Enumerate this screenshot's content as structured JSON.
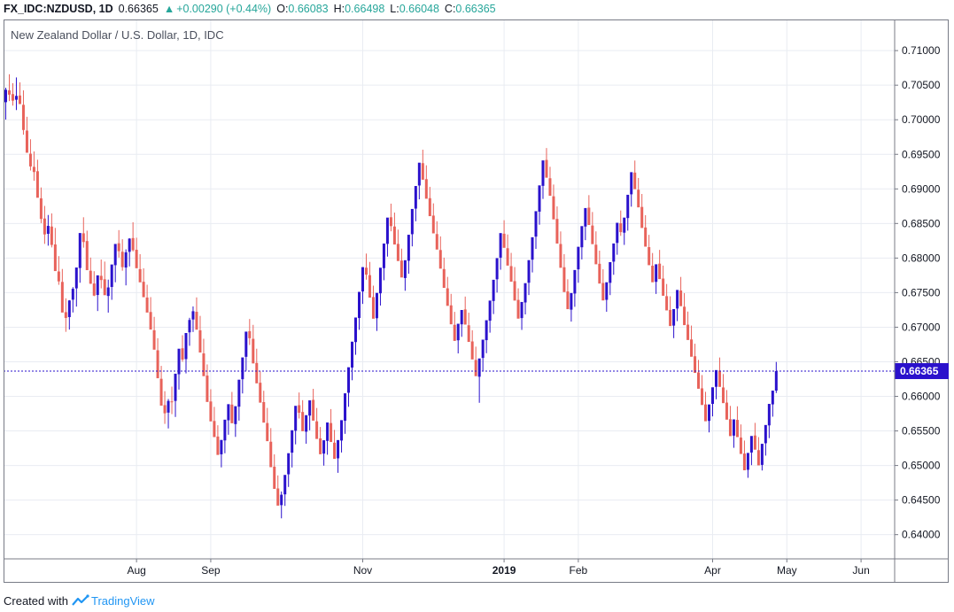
{
  "header": {
    "symbol": "FX_IDC:NZDUSD, 1D",
    "last": "0.66365",
    "change": "+0.00290 (+0.44%)",
    "open_label": "O:",
    "open": "0.66083",
    "high_label": "H:",
    "high": "0.66498",
    "low_label": "L:",
    "low": "0.66048",
    "close_label": "C:",
    "close": "0.66365"
  },
  "footer": {
    "created_with": "Created with",
    "brand": "TradingView",
    "logo_icon": "tradingview-logo-icon"
  },
  "colors": {
    "up": "#2a11cc",
    "down": "#e8625a",
    "last_price_line": "#2a11cc",
    "grid": "#e9ecf2",
    "axis_text": "#131722"
  },
  "chart_data": {
    "type": "candlestick",
    "title": "New Zealand Dollar / U.S. Dollar, 1D, IDC",
    "ylim": [
      0.6365,
      0.7145
    ],
    "y_ticks": [
      "0.64000",
      "0.64500",
      "0.65000",
      "0.65500",
      "0.66000",
      "0.66500",
      "0.67000",
      "0.67500",
      "0.68000",
      "0.68500",
      "0.69000",
      "0.69500",
      "0.70000",
      "0.70500",
      "0.71000"
    ],
    "x_ticks": [
      {
        "label": "Aug",
        "index": 37
      },
      {
        "label": "Sep",
        "index": 58
      },
      {
        "label": "Nov",
        "index": 101
      },
      {
        "label": "2019",
        "index": 141
      },
      {
        "label": "Feb",
        "index": 162
      },
      {
        "label": "Apr",
        "index": 200
      },
      {
        "label": "May",
        "index": 221
      },
      {
        "label": "Jun",
        "index": 242
      }
    ],
    "last_price": {
      "label": "0.66365",
      "value": 0.66365
    },
    "grid": true,
    "candles": [
      [
        0.70254,
        0.70464,
        0.70002,
        0.70434
      ],
      [
        0.70425,
        0.70658,
        0.7027,
        0.70363
      ],
      [
        0.70371,
        0.70529,
        0.70204,
        0.70276
      ],
      [
        0.70289,
        0.70612,
        0.7014,
        0.70345
      ],
      [
        0.70351,
        0.70541,
        0.70234,
        0.70227
      ],
      [
        0.70216,
        0.70425,
        0.69784,
        0.69852
      ],
      [
        0.69843,
        0.70043,
        0.69584,
        0.69523
      ],
      [
        0.69509,
        0.69718,
        0.69266,
        0.69325
      ],
      [
        0.69319,
        0.69542,
        0.69117,
        0.69244
      ],
      [
        0.69256,
        0.69422,
        0.68914,
        0.68872
      ],
      [
        0.68864,
        0.69021,
        0.68505,
        0.68566
      ],
      [
        0.68572,
        0.68754,
        0.68205,
        0.68342
      ],
      [
        0.68351,
        0.68623,
        0.68179,
        0.68465
      ],
      [
        0.68456,
        0.68646,
        0.68154,
        0.6819
      ],
      [
        0.68197,
        0.68436,
        0.67963,
        0.67812
      ],
      [
        0.67806,
        0.68028,
        0.67613,
        0.67663
      ],
      [
        0.67655,
        0.67842,
        0.67354,
        0.67212
      ],
      [
        0.67218,
        0.67418,
        0.66933,
        0.67134
      ],
      [
        0.67146,
        0.67392,
        0.66966,
        0.67387
      ],
      [
        0.67398,
        0.67579,
        0.67213,
        0.67555
      ],
      [
        0.67562,
        0.67763,
        0.67298,
        0.67863
      ],
      [
        0.67856,
        0.68047,
        0.67643,
        0.68362
      ],
      [
        0.68358,
        0.6859,
        0.6815,
        0.68232
      ],
      [
        0.68246,
        0.68396,
        0.67971,
        0.67825
      ],
      [
        0.67817,
        0.68007,
        0.67626,
        0.67629
      ],
      [
        0.67632,
        0.6781,
        0.67449,
        0.67457
      ],
      [
        0.67466,
        0.67664,
        0.67234,
        0.6775
      ],
      [
        0.67743,
        0.67979,
        0.67562,
        0.67682
      ],
      [
        0.67693,
        0.67949,
        0.6751,
        0.67463
      ],
      [
        0.67452,
        0.67688,
        0.67211,
        0.67575
      ],
      [
        0.67582,
        0.67791,
        0.67396,
        0.67907
      ],
      [
        0.67897,
        0.68049,
        0.6765,
        0.68204
      ],
      [
        0.68214,
        0.68404,
        0.68007,
        0.681
      ],
      [
        0.68091,
        0.68272,
        0.67817,
        0.67869
      ],
      [
        0.67863,
        0.68126,
        0.67605,
        0.68083
      ],
      [
        0.6809,
        0.68288,
        0.67879,
        0.68281
      ],
      [
        0.68289,
        0.68518,
        0.68095,
        0.68114
      ],
      [
        0.6812,
        0.68294,
        0.67894,
        0.67853
      ],
      [
        0.6784,
        0.68056,
        0.67655,
        0.67649
      ],
      [
        0.67657,
        0.67852,
        0.67455,
        0.67434
      ],
      [
        0.67429,
        0.67614,
        0.6723,
        0.67212
      ],
      [
        0.6722,
        0.67435,
        0.67038,
        0.66966
      ],
      [
        0.66956,
        0.6715,
        0.66721,
        0.66675
      ],
      [
        0.66666,
        0.66841,
        0.66452,
        0.66262
      ],
      [
        0.66254,
        0.66441,
        0.66063,
        0.65866
      ],
      [
        0.65873,
        0.66075,
        0.65602,
        0.65755
      ],
      [
        0.65765,
        0.65962,
        0.65536,
        0.65934
      ],
      [
        0.65927,
        0.66141,
        0.65743,
        0.65924
      ],
      [
        0.65934,
        0.66148,
        0.65702,
        0.66328
      ],
      [
        0.6632,
        0.66513,
        0.66098,
        0.66689
      ],
      [
        0.66695,
        0.66884,
        0.66502,
        0.66532
      ],
      [
        0.66539,
        0.66741,
        0.66332,
        0.66916
      ],
      [
        0.66926,
        0.67136,
        0.66731,
        0.67105
      ],
      [
        0.67112,
        0.673,
        0.66931,
        0.67231
      ],
      [
        0.67223,
        0.67431,
        0.67058,
        0.66964
      ],
      [
        0.66955,
        0.67164,
        0.66754,
        0.66634
      ],
      [
        0.66621,
        0.66833,
        0.6644,
        0.66292
      ],
      [
        0.663,
        0.66462,
        0.66099,
        0.65919
      ],
      [
        0.65926,
        0.66103,
        0.65712,
        0.65638
      ],
      [
        0.65644,
        0.65848,
        0.65433,
        0.65411
      ],
      [
        0.65419,
        0.65582,
        0.65232,
        0.65153
      ],
      [
        0.65162,
        0.65348,
        0.64973,
        0.6537
      ],
      [
        0.65363,
        0.6555,
        0.65177,
        0.65663
      ],
      [
        0.65654,
        0.65822,
        0.65445,
        0.65887
      ],
      [
        0.65881,
        0.66064,
        0.65694,
        0.65611
      ],
      [
        0.65599,
        0.65804,
        0.65414,
        0.65858
      ],
      [
        0.65851,
        0.66016,
        0.65649,
        0.66241
      ],
      [
        0.66248,
        0.66465,
        0.66042,
        0.66563
      ],
      [
        0.66572,
        0.66768,
        0.66371,
        0.66936
      ],
      [
        0.66943,
        0.67119,
        0.66743,
        0.66841
      ],
      [
        0.66832,
        0.67034,
        0.66659,
        0.66476
      ],
      [
        0.66483,
        0.66689,
        0.66272,
        0.66188
      ],
      [
        0.66197,
        0.66361,
        0.66002,
        0.65909
      ],
      [
        0.65917,
        0.66081,
        0.65721,
        0.6562
      ],
      [
        0.65614,
        0.65833,
        0.65428,
        0.65352
      ],
      [
        0.65344,
        0.65541,
        0.65159,
        0.64976
      ],
      [
        0.64983,
        0.65161,
        0.64778,
        0.64662
      ],
      [
        0.64668,
        0.64857,
        0.64464,
        0.6442
      ],
      [
        0.64427,
        0.64624,
        0.64236,
        0.64577
      ],
      [
        0.64583,
        0.64795,
        0.64416,
        0.64864
      ],
      [
        0.64873,
        0.65066,
        0.6469,
        0.65178
      ],
      [
        0.65186,
        0.65351,
        0.64972,
        0.6551
      ],
      [
        0.65503,
        0.65689,
        0.65306,
        0.65863
      ],
      [
        0.65872,
        0.66056,
        0.6568,
        0.65763
      ],
      [
        0.65774,
        0.65945,
        0.65559,
        0.65496
      ],
      [
        0.65489,
        0.65668,
        0.65315,
        0.65728
      ],
      [
        0.65722,
        0.65891,
        0.65509,
        0.65942
      ],
      [
        0.65949,
        0.66109,
        0.65765,
        0.65649
      ],
      [
        0.65639,
        0.65832,
        0.65457,
        0.65384
      ],
      [
        0.65392,
        0.65557,
        0.65186,
        0.65163
      ],
      [
        0.65172,
        0.65361,
        0.64998,
        0.65365
      ],
      [
        0.65356,
        0.65557,
        0.65156,
        0.65622
      ],
      [
        0.65614,
        0.65816,
        0.65421,
        0.6534
      ],
      [
        0.6533,
        0.65515,
        0.6514,
        0.65096
      ],
      [
        0.65104,
        0.65315,
        0.64894,
        0.65368
      ],
      [
        0.65361,
        0.65552,
        0.65188,
        0.65656
      ],
      [
        0.65648,
        0.65812,
        0.65458,
        0.66044
      ],
      [
        0.66052,
        0.66236,
        0.65849,
        0.66421
      ],
      [
        0.66416,
        0.66599,
        0.66233,
        0.66791
      ],
      [
        0.66785,
        0.66959,
        0.66601,
        0.6714
      ],
      [
        0.67133,
        0.67325,
        0.66963,
        0.67511
      ],
      [
        0.67517,
        0.67723,
        0.67337,
        0.67869
      ],
      [
        0.67861,
        0.68065,
        0.67687,
        0.6776
      ],
      [
        0.67753,
        0.67944,
        0.67568,
        0.67428
      ],
      [
        0.67436,
        0.67601,
        0.67253,
        0.67123
      ],
      [
        0.6713,
        0.67292,
        0.66946,
        0.67496
      ],
      [
        0.6749,
        0.67693,
        0.67313,
        0.6786
      ],
      [
        0.67854,
        0.68057,
        0.67679,
        0.6821
      ],
      [
        0.68205,
        0.68384,
        0.68021,
        0.68585
      ],
      [
        0.6859,
        0.68787,
        0.68387,
        0.68462
      ],
      [
        0.68456,
        0.68658,
        0.68262,
        0.68196
      ],
      [
        0.68205,
        0.68411,
        0.68028,
        0.67957
      ],
      [
        0.67964,
        0.68136,
        0.67762,
        0.67719
      ],
      [
        0.67711,
        0.67904,
        0.67527,
        0.67969
      ],
      [
        0.67961,
        0.6815,
        0.67773,
        0.68337
      ],
      [
        0.68345,
        0.6854,
        0.68169,
        0.6871
      ],
      [
        0.68715,
        0.68886,
        0.68532,
        0.69042
      ],
      [
        0.69049,
        0.69242,
        0.68849,
        0.69379
      ],
      [
        0.69372,
        0.69567,
        0.69182,
        0.69133
      ],
      [
        0.69141,
        0.69341,
        0.68953,
        0.68858
      ],
      [
        0.68866,
        0.6903,
        0.6867,
        0.68606
      ],
      [
        0.68614,
        0.68791,
        0.68443,
        0.68357
      ],
      [
        0.68347,
        0.68532,
        0.68161,
        0.68123
      ],
      [
        0.68116,
        0.68313,
        0.67945,
        0.67847
      ],
      [
        0.67841,
        0.68006,
        0.67658,
        0.67569
      ],
      [
        0.67562,
        0.67728,
        0.67382,
        0.67309
      ],
      [
        0.67316,
        0.67482,
        0.67124,
        0.67042
      ],
      [
        0.67034,
        0.67222,
        0.66857,
        0.66802
      ],
      [
        0.66811,
        0.66985,
        0.66621,
        0.6705
      ],
      [
        0.67042,
        0.67242,
        0.66861,
        0.67249
      ],
      [
        0.67257,
        0.67443,
        0.67084,
        0.67038
      ],
      [
        0.67028,
        0.6721,
        0.66856,
        0.66787
      ],
      [
        0.66794,
        0.66956,
        0.66597,
        0.66534
      ],
      [
        0.66526,
        0.66719,
        0.66352,
        0.66292
      ],
      [
        0.66284,
        0.66495,
        0.65907,
        0.66548
      ],
      [
        0.66556,
        0.66742,
        0.66372,
        0.6682
      ],
      [
        0.66813,
        0.6698,
        0.66624,
        0.67101
      ],
      [
        0.67094,
        0.67264,
        0.66921,
        0.67385
      ],
      [
        0.67379,
        0.67565,
        0.6719,
        0.67686
      ],
      [
        0.67693,
        0.67884,
        0.67501,
        0.67999
      ],
      [
        0.68006,
        0.68189,
        0.67831,
        0.68361
      ],
      [
        0.68352,
        0.68547,
        0.68177,
        0.68148
      ],
      [
        0.68142,
        0.68341,
        0.67976,
        0.67891
      ],
      [
        0.67883,
        0.68075,
        0.67717,
        0.67658
      ],
      [
        0.67666,
        0.6787,
        0.67486,
        0.67385
      ],
      [
        0.67395,
        0.67562,
        0.67222,
        0.67124
      ],
      [
        0.67132,
        0.67304,
        0.66961,
        0.67365
      ],
      [
        0.67358,
        0.67544,
        0.67185,
        0.67637
      ],
      [
        0.67643,
        0.67826,
        0.67465,
        0.6797
      ],
      [
        0.67977,
        0.68173,
        0.67792,
        0.68301
      ],
      [
        0.6831,
        0.6849,
        0.68133,
        0.68678
      ],
      [
        0.68671,
        0.6887,
        0.68482,
        0.69051
      ],
      [
        0.69044,
        0.69237,
        0.68855,
        0.69412
      ],
      [
        0.69419,
        0.69591,
        0.69225,
        0.69162
      ],
      [
        0.69154,
        0.6932,
        0.68966,
        0.68901
      ],
      [
        0.68893,
        0.69063,
        0.6872,
        0.68559
      ],
      [
        0.68566,
        0.68747,
        0.68379,
        0.6821
      ],
      [
        0.68203,
        0.68385,
        0.68025,
        0.67859
      ],
      [
        0.67867,
        0.68057,
        0.67673,
        0.67508
      ],
      [
        0.67517,
        0.67693,
        0.67333,
        0.67261
      ],
      [
        0.67254,
        0.67422,
        0.67081,
        0.67494
      ],
      [
        0.67487,
        0.67671,
        0.67295,
        0.67827
      ],
      [
        0.67837,
        0.68034,
        0.67643,
        0.68163
      ],
      [
        0.68156,
        0.68336,
        0.6798,
        0.68462
      ],
      [
        0.68456,
        0.68642,
        0.68259,
        0.68723
      ],
      [
        0.68729,
        0.6891,
        0.68552,
        0.68478
      ],
      [
        0.6847,
        0.68666,
        0.68284,
        0.68201
      ],
      [
        0.68193,
        0.68386,
        0.68009,
        0.6791
      ],
      [
        0.67917,
        0.68107,
        0.67745,
        0.67631
      ],
      [
        0.67639,
        0.67838,
        0.67461,
        0.67387
      ],
      [
        0.67396,
        0.67569,
        0.67223,
        0.6765
      ],
      [
        0.67642,
        0.67823,
        0.67464,
        0.67941
      ],
      [
        0.67948,
        0.68133,
        0.67758,
        0.68211
      ],
      [
        0.68219,
        0.68402,
        0.68048,
        0.6851
      ],
      [
        0.68503,
        0.68688,
        0.68321,
        0.68375
      ],
      [
        0.68367,
        0.68552,
        0.6819,
        0.68585
      ],
      [
        0.68579,
        0.68757,
        0.68396,
        0.68915
      ],
      [
        0.68922,
        0.69114,
        0.68743,
        0.69242
      ],
      [
        0.69236,
        0.6941,
        0.69059,
        0.68996
      ],
      [
        0.68988,
        0.69158,
        0.68814,
        0.68733
      ],
      [
        0.68739,
        0.68927,
        0.68564,
        0.68435
      ],
      [
        0.68442,
        0.6862,
        0.68261,
        0.68165
      ],
      [
        0.68158,
        0.68336,
        0.67974,
        0.67897
      ],
      [
        0.67889,
        0.68073,
        0.67716,
        0.6765
      ],
      [
        0.67656,
        0.67857,
        0.67481,
        0.6791
      ],
      [
        0.67919,
        0.68118,
        0.67739,
        0.67696
      ],
      [
        0.67703,
        0.67891,
        0.67519,
        0.67455
      ],
      [
        0.67449,
        0.67625,
        0.67267,
        0.67243
      ],
      [
        0.6725,
        0.67447,
        0.67061,
        0.67017
      ],
      [
        0.67023,
        0.67217,
        0.66842,
        0.67262
      ],
      [
        0.6727,
        0.67449,
        0.67088,
        0.67539
      ],
      [
        0.67531,
        0.67727,
        0.6735,
        0.67304
      ],
      [
        0.67296,
        0.67493,
        0.67118,
        0.6703
      ],
      [
        0.67037,
        0.67226,
        0.66864,
        0.66815
      ],
      [
        0.66823,
        0.67024,
        0.66652,
        0.66573
      ],
      [
        0.6658,
        0.66761,
        0.66401,
        0.66339
      ],
      [
        0.66346,
        0.66527,
        0.6617,
        0.6611
      ],
      [
        0.66116,
        0.66308,
        0.65937,
        0.65875
      ],
      [
        0.65883,
        0.66066,
        0.65699,
        0.6564
      ],
      [
        0.65645,
        0.65835,
        0.65479,
        0.65883
      ],
      [
        0.65891,
        0.66072,
        0.65711,
        0.66131
      ],
      [
        0.66138,
        0.66309,
        0.65958,
        0.6638
      ],
      [
        0.66373,
        0.66562,
        0.66195,
        0.66137
      ],
      [
        0.66129,
        0.66323,
        0.65953,
        0.65902
      ],
      [
        0.6591,
        0.66091,
        0.65733,
        0.65663
      ],
      [
        0.6567,
        0.65862,
        0.65491,
        0.65425
      ],
      [
        0.65432,
        0.65621,
        0.65256,
        0.65667
      ],
      [
        0.6566,
        0.65856,
        0.65477,
        0.65411
      ],
      [
        0.65404,
        0.65594,
        0.65227,
        0.65167
      ],
      [
        0.65173,
        0.65361,
        0.64993,
        0.64931
      ],
      [
        0.64938,
        0.65125,
        0.64822,
        0.65182
      ],
      [
        0.65188,
        0.65375,
        0.65005,
        0.65427
      ],
      [
        0.65434,
        0.65617,
        0.65255,
        0.65229
      ],
      [
        0.65222,
        0.65411,
        0.65043,
        0.65002
      ],
      [
        0.65009,
        0.65197,
        0.64928,
        0.65314
      ],
      [
        0.65322,
        0.65506,
        0.65143,
        0.65586
      ],
      [
        0.6558,
        0.65774,
        0.65396,
        0.65891
      ],
      [
        0.65884,
        0.66079,
        0.65706,
        0.66083
      ],
      [
        0.66083,
        0.66498,
        0.66048,
        0.66365
      ]
    ]
  }
}
